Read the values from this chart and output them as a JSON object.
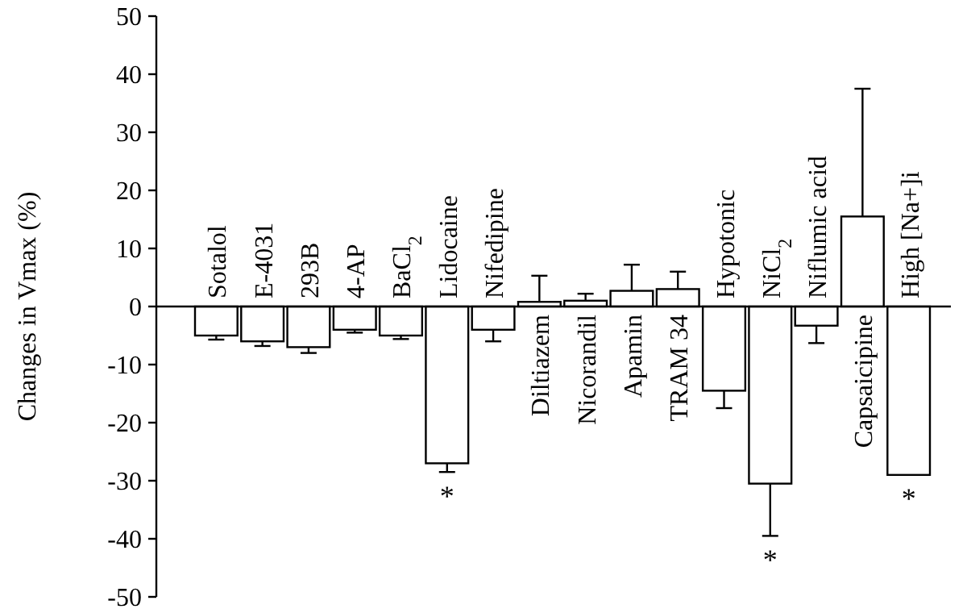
{
  "chart_data": {
    "type": "bar",
    "ylabel": "Changes in Vmax (%)",
    "categories": [
      "Sotalol",
      "E-4031",
      "293B",
      "4-AP",
      "BaCl$_{2}$",
      "Lidocaine",
      "Nifedipine",
      "Diltiazem",
      "Nicorandil",
      "Apamin",
      "TRAM 34",
      "Hypotonic",
      "NiCl$_{2}$",
      "Niflumic acid",
      "Capsaicipine",
      "High [Na+]i"
    ],
    "values": [
      -5,
      -6,
      -7,
      -4,
      -5,
      -27,
      -4,
      0.8,
      1,
      2.7,
      3,
      -14.5,
      -30.5,
      -3.3,
      15.5,
      -29
    ],
    "errors": [
      0.7,
      0.8,
      1,
      0.5,
      0.6,
      1.5,
      2,
      4.5,
      1.2,
      4.5,
      3,
      3,
      9,
      3,
      22,
      null
    ],
    "color": "#ffffff",
    "ylim": [
      -50,
      50
    ],
    "yticks": [
      -50,
      -40,
      -30,
      -20,
      -10,
      0,
      10,
      20,
      30,
      40,
      50
    ],
    "grid": false,
    "annotations": [
      {
        "text": "*",
        "x": "Lidocaine",
        "y": -28.5
      },
      {
        "text": "*",
        "x": "NiCl$_{2}$",
        "y": -39.5
      },
      {
        "text": "*",
        "x": "High [Na+]i",
        "y": -29
      }
    ]
  }
}
